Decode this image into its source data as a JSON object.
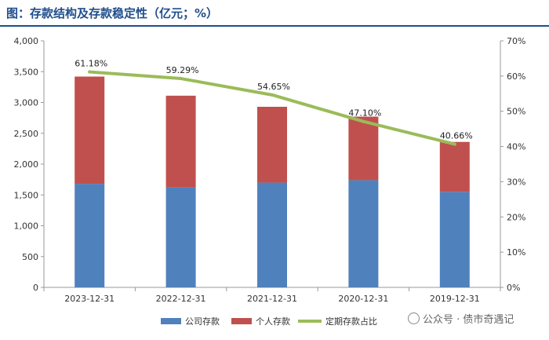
{
  "title": "图：存款结构及存款稳定性（亿元；%）",
  "watermark": "公众号 · 债市奇遇记",
  "colors": {
    "company": "#4f81bd",
    "personal": "#c0504d",
    "ratio": "#9bbb59",
    "title": "#1f4e8c"
  },
  "chart_data": {
    "type": "bar",
    "stacked": true,
    "categories": [
      "2023-12-31",
      "2022-12-31",
      "2021-12-31",
      "2020-12-31",
      "2019-12-31"
    ],
    "series": [
      {
        "name": "公司存款",
        "type": "bar",
        "axis": "left",
        "values": [
          1680,
          1620,
          1700,
          1740,
          1550
        ]
      },
      {
        "name": "个人存款",
        "type": "bar",
        "axis": "left",
        "values": [
          1740,
          1490,
          1230,
          1030,
          810
        ]
      },
      {
        "name": "定期存款占比",
        "type": "line",
        "axis": "right",
        "values": [
          61.18,
          59.29,
          54.65,
          47.1,
          40.66
        ],
        "labels": [
          "61.18%",
          "59.29%",
          "54.65%",
          "47.10%",
          "40.66%"
        ]
      }
    ],
    "ylim": [
      0,
      4000
    ],
    "yticks": [
      "0",
      "500",
      "1,000",
      "1,500",
      "2,000",
      "2,500",
      "3,000",
      "3,500",
      "4,000"
    ],
    "y2lim": [
      0,
      70
    ],
    "y2ticks": [
      "0%",
      "10%",
      "20%",
      "30%",
      "40%",
      "50%",
      "60%",
      "70%"
    ],
    "grid": false,
    "legend_position": "bottom"
  }
}
